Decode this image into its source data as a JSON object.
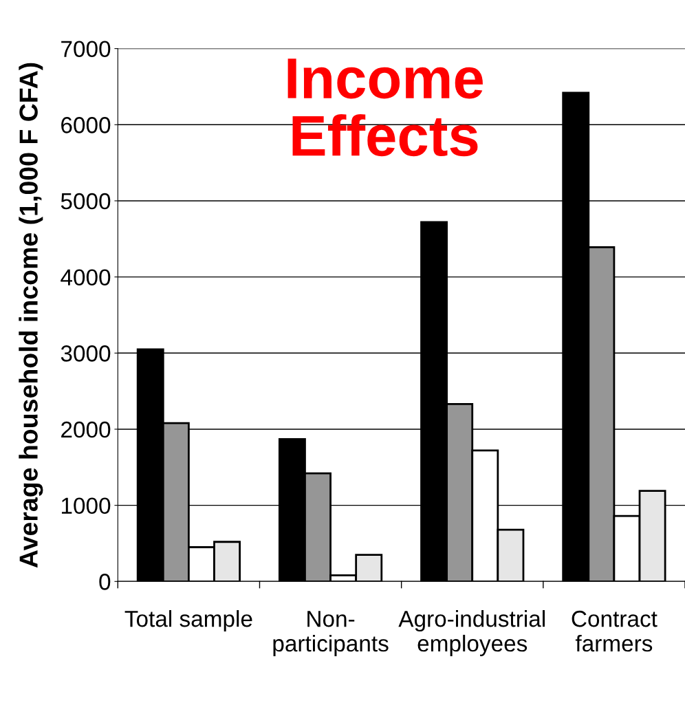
{
  "chart_data": {
    "type": "bar",
    "title": "Income\nEffects",
    "ylabel": "Average household income (1,000 F CFA)",
    "categories": [
      "Total sample",
      "Non-\nparticipants",
      "Agro-industrial\nemployees",
      "Contract\nfarmers"
    ],
    "series": [
      {
        "color": "#000000",
        "values": [
          3050,
          1870,
          4720,
          6420
        ]
      },
      {
        "color": "#969696",
        "values": [
          2080,
          1420,
          2330,
          4390
        ]
      },
      {
        "color": "#ffffff",
        "values": [
          450,
          80,
          1720,
          860
        ]
      },
      {
        "color": "#e6e6e6",
        "values": [
          520,
          350,
          680,
          1190
        ]
      }
    ],
    "ylim": [
      0,
      7000
    ],
    "yticks": [
      0,
      1000,
      2000,
      3000,
      4000,
      5000,
      6000,
      7000
    ],
    "grid": "y",
    "legend": false
  }
}
